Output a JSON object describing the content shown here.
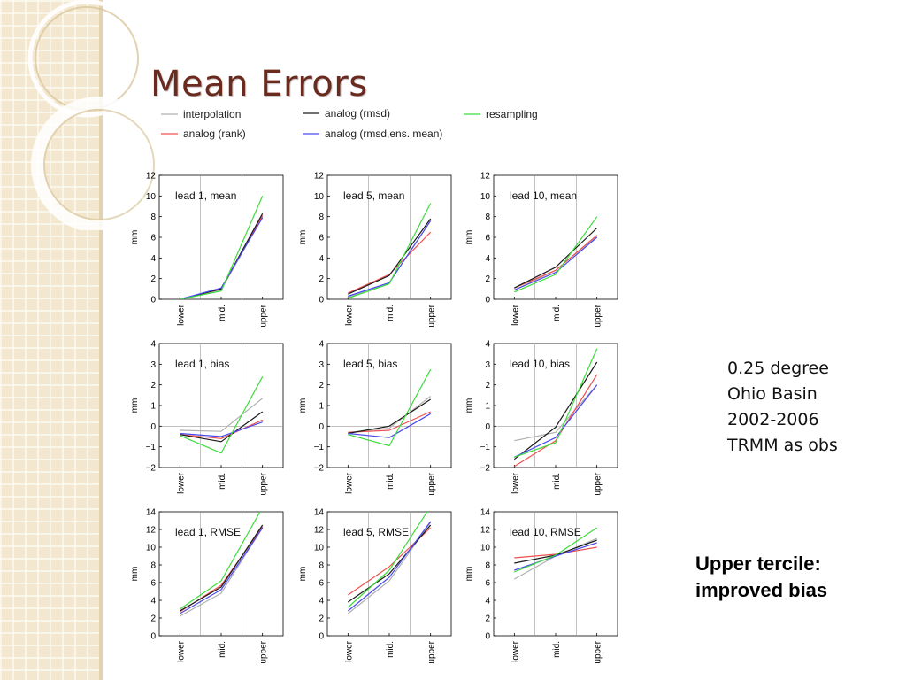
{
  "slide": {
    "title": "Mean Errors",
    "info_lines": [
      "0.25 degree",
      "Ohio Basin",
      "2002-2006",
      "TRMM as obs"
    ],
    "note_lines": [
      "Upper tercile:",
      "improved bias"
    ]
  },
  "colors": {
    "title": "#6b2a1e",
    "sidebar": "#f3e8cf",
    "interpolation": "#b0b0b0",
    "analog_rank": "#ef5050",
    "analog_rmsd": "#1a1a1a",
    "analog_rmsd_ens_mean": "#4a4af0",
    "resampling": "#3ddc3d"
  },
  "legend": [
    {
      "name": "interpolation",
      "color": "#b0b0b0"
    },
    {
      "name": "analog (rmsd)",
      "color": "#1a1a1a"
    },
    {
      "name": "resampling",
      "color": "#3ddc3d"
    },
    {
      "name": "analog (rank)",
      "color": "#ef5050"
    },
    {
      "name": "analog (rmsd,ens. mean)",
      "color": "#4a4af0"
    }
  ],
  "chart_data": [
    {
      "type": "line",
      "label": "lead 1, mean",
      "categories": [
        "lower",
        "mid.",
        "upper"
      ],
      "ylabel": "mm",
      "ylim": [
        0,
        12
      ],
      "yticks": [
        "0",
        "2",
        "4",
        "6",
        "8",
        "10",
        "12"
      ],
      "zero_line": false,
      "series": [
        {
          "name": "interpolation",
          "values": [
            0.0,
            0.9,
            8.0
          ]
        },
        {
          "name": "analog (rank)",
          "values": [
            0.0,
            1.0,
            8.1
          ]
        },
        {
          "name": "analog (rmsd)",
          "values": [
            0.0,
            1.0,
            8.3
          ]
        },
        {
          "name": "analog (rmsd,ens. mean)",
          "values": [
            0.0,
            1.1,
            7.9
          ]
        },
        {
          "name": "resampling",
          "values": [
            0.0,
            0.8,
            10.0
          ]
        }
      ]
    },
    {
      "type": "line",
      "label": "lead 5, mean",
      "categories": [
        "lower",
        "mid.",
        "upper"
      ],
      "ylabel": "mm",
      "ylim": [
        0,
        12
      ],
      "yticks": [
        "0",
        "2",
        "4",
        "6",
        "8",
        "10",
        "12"
      ],
      "zero_line": false,
      "series": [
        {
          "name": "interpolation",
          "values": [
            0.2,
            1.6,
            7.6
          ]
        },
        {
          "name": "analog (rank)",
          "values": [
            0.6,
            2.4,
            6.5
          ]
        },
        {
          "name": "analog (rmsd)",
          "values": [
            0.5,
            2.3,
            7.8
          ]
        },
        {
          "name": "analog (rmsd,ens. mean)",
          "values": [
            0.3,
            1.6,
            7.6
          ]
        },
        {
          "name": "resampling",
          "values": [
            0.1,
            1.5,
            9.3
          ]
        }
      ]
    },
    {
      "type": "line",
      "label": "lead 10, mean",
      "categories": [
        "lower",
        "mid.",
        "upper"
      ],
      "ylabel": "mm",
      "ylim": [
        0,
        12
      ],
      "yticks": [
        "0",
        "2",
        "4",
        "6",
        "8",
        "10",
        "12"
      ],
      "zero_line": false,
      "series": [
        {
          "name": "interpolation",
          "values": [
            0.9,
            2.8,
            6.1
          ]
        },
        {
          "name": "analog (rank)",
          "values": [
            1.1,
            2.8,
            6.2
          ]
        },
        {
          "name": "analog (rmsd)",
          "values": [
            1.1,
            3.1,
            6.9
          ]
        },
        {
          "name": "analog (rmsd,ens. mean)",
          "values": [
            0.9,
            2.6,
            6.0
          ]
        },
        {
          "name": "resampling",
          "values": [
            0.7,
            2.4,
            8.0
          ]
        }
      ]
    },
    {
      "type": "line",
      "label": "lead 1, bias",
      "categories": [
        "lower",
        "mid.",
        "upper"
      ],
      "ylabel": "mm",
      "ylim": [
        -2,
        4
      ],
      "yticks": [
        "−2",
        "−1",
        "0",
        "1",
        "2",
        "3",
        "4"
      ],
      "zero_line": true,
      "series": [
        {
          "name": "interpolation",
          "values": [
            -0.2,
            -0.25,
            1.35
          ]
        },
        {
          "name": "analog (rank)",
          "values": [
            -0.4,
            -0.6,
            0.3
          ]
        },
        {
          "name": "analog (rmsd)",
          "values": [
            -0.4,
            -0.75,
            0.7
          ]
        },
        {
          "name": "analog (rmsd,ens. mean)",
          "values": [
            -0.35,
            -0.5,
            0.2
          ]
        },
        {
          "name": "resampling",
          "values": [
            -0.45,
            -1.3,
            2.4
          ]
        }
      ]
    },
    {
      "type": "line",
      "label": "lead 5, bias",
      "categories": [
        "lower",
        "mid.",
        "upper"
      ],
      "ylabel": "mm",
      "ylim": [
        -2,
        4
      ],
      "yticks": [
        "−2",
        "−1",
        "0",
        "1",
        "2",
        "3",
        "4"
      ],
      "zero_line": true,
      "series": [
        {
          "name": "interpolation",
          "values": [
            -0.3,
            -0.1,
            1.45
          ]
        },
        {
          "name": "analog (rank)",
          "values": [
            -0.3,
            -0.2,
            0.7
          ]
        },
        {
          "name": "analog (rmsd)",
          "values": [
            -0.35,
            0.0,
            1.3
          ]
        },
        {
          "name": "analog (rmsd,ens. mean)",
          "values": [
            -0.35,
            -0.55,
            0.6
          ]
        },
        {
          "name": "resampling",
          "values": [
            -0.4,
            -0.95,
            2.75
          ]
        }
      ]
    },
    {
      "type": "line",
      "label": "lead 10, bias",
      "categories": [
        "lower",
        "mid.",
        "upper"
      ],
      "ylabel": "mm",
      "ylim": [
        -2,
        4
      ],
      "yticks": [
        "−2",
        "−1",
        "0",
        "1",
        "2",
        "3",
        "4"
      ],
      "zero_line": true,
      "series": [
        {
          "name": "interpolation",
          "values": [
            -0.7,
            -0.3,
            2.0
          ]
        },
        {
          "name": "analog (rank)",
          "values": [
            -1.95,
            -0.7,
            2.5
          ]
        },
        {
          "name": "analog (rmsd)",
          "values": [
            -1.6,
            -0.05,
            3.1
          ]
        },
        {
          "name": "analog (rmsd,ens. mean)",
          "values": [
            -1.5,
            -0.55,
            2.0
          ]
        },
        {
          "name": "resampling",
          "values": [
            -1.5,
            -0.8,
            3.75
          ]
        }
      ]
    },
    {
      "type": "line",
      "label": "lead 1, RMSE",
      "categories": [
        "lower",
        "mid.",
        "upper"
      ],
      "ylabel": "mm",
      "ylim": [
        0,
        14
      ],
      "yticks": [
        "0",
        "2",
        "4",
        "6",
        "8",
        "10",
        "12",
        "14"
      ],
      "zero_line": false,
      "series": [
        {
          "name": "interpolation",
          "values": [
            2.2,
            4.8,
            12.2
          ]
        },
        {
          "name": "analog (rank)",
          "values": [
            2.7,
            5.7,
            12.3
          ]
        },
        {
          "name": "analog (rmsd)",
          "values": [
            2.8,
            5.5,
            12.5
          ]
        },
        {
          "name": "analog (rmsd,ens. mean)",
          "values": [
            2.5,
            5.2,
            12.2
          ]
        },
        {
          "name": "resampling",
          "values": [
            3.0,
            6.2,
            14.5
          ]
        }
      ]
    },
    {
      "type": "line",
      "label": "lead 5, RMSE",
      "categories": [
        "lower",
        "mid.",
        "upper"
      ],
      "ylabel": "mm",
      "ylim": [
        0,
        14
      ],
      "yticks": [
        "0",
        "2",
        "4",
        "6",
        "8",
        "10",
        "12",
        "14"
      ],
      "zero_line": false,
      "series": [
        {
          "name": "interpolation",
          "values": [
            2.5,
            6.2,
            12.8
          ]
        },
        {
          "name": "analog (rank)",
          "values": [
            4.6,
            7.8,
            12.2
          ]
        },
        {
          "name": "analog (rmsd)",
          "values": [
            3.8,
            7.0,
            12.5
          ]
        },
        {
          "name": "analog (rmsd,ens. mean)",
          "values": [
            2.8,
            6.6,
            12.9
          ]
        },
        {
          "name": "resampling",
          "values": [
            3.2,
            7.4,
            14.6
          ]
        }
      ]
    },
    {
      "type": "line",
      "label": "lead 10, RMSE",
      "categories": [
        "lower",
        "mid.",
        "upper"
      ],
      "ylabel": "mm",
      "ylim": [
        0,
        14
      ],
      "yticks": [
        "0",
        "2",
        "4",
        "6",
        "8",
        "10",
        "12",
        "14"
      ],
      "zero_line": false,
      "series": [
        {
          "name": "interpolation",
          "values": [
            6.4,
            9.0,
            11.0
          ]
        },
        {
          "name": "analog (rank)",
          "values": [
            8.8,
            9.2,
            10.0
          ]
        },
        {
          "name": "analog (rmsd)",
          "values": [
            8.2,
            9.1,
            10.8
          ]
        },
        {
          "name": "analog (rmsd,ens. mean)",
          "values": [
            7.4,
            9.0,
            10.5
          ]
        },
        {
          "name": "resampling",
          "values": [
            7.2,
            9.1,
            12.2
          ]
        }
      ]
    }
  ]
}
